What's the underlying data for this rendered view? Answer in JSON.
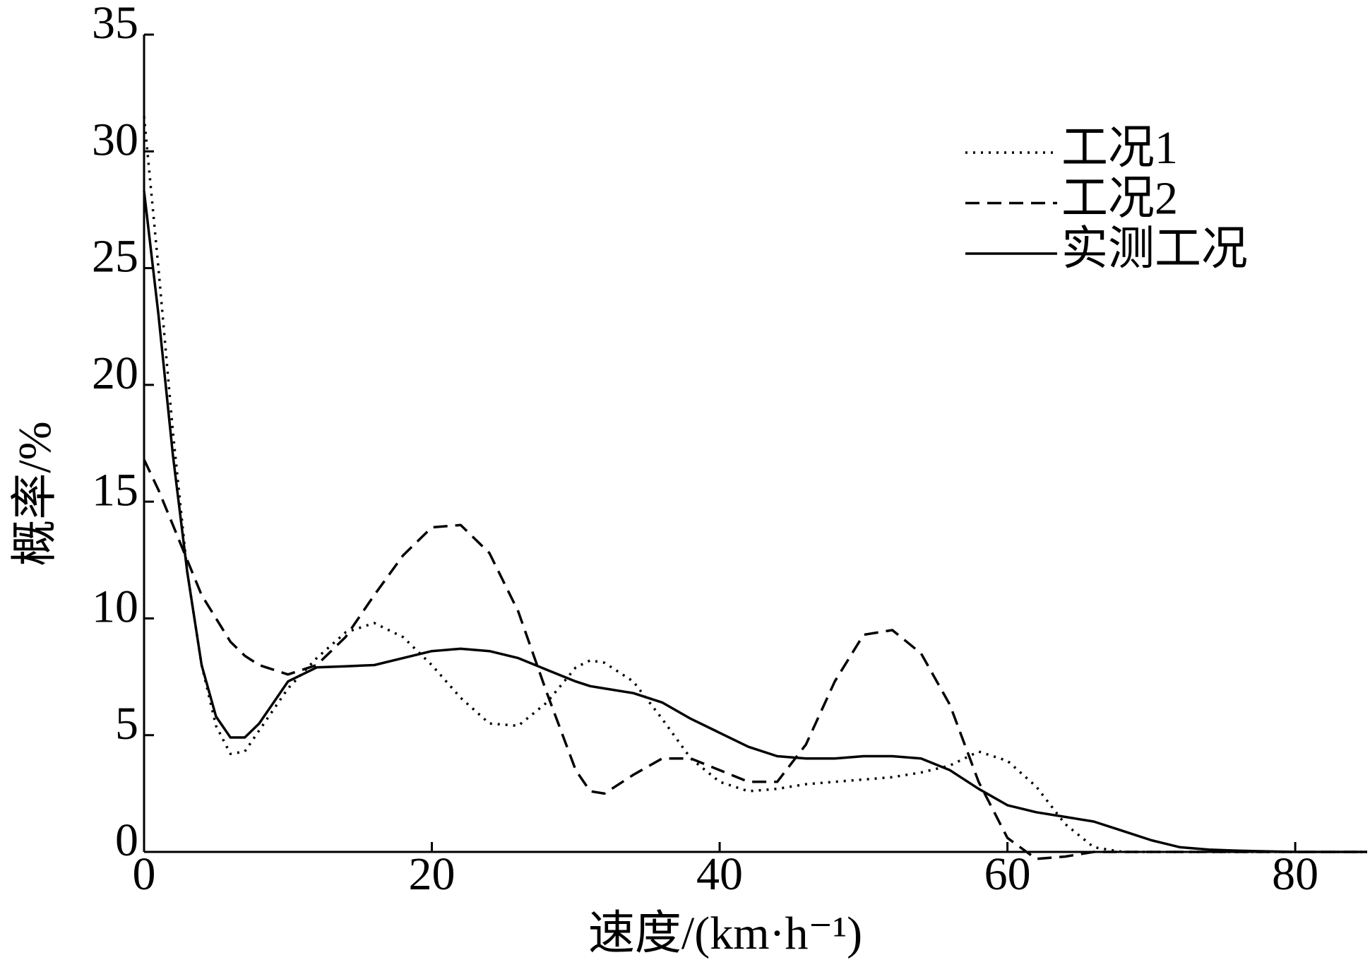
{
  "chart_data": {
    "type": "line",
    "xlabel": "速度/(km·h⁻¹)",
    "ylabel": "概率/%",
    "x": [
      0,
      1,
      2,
      3,
      4,
      5,
      6,
      7,
      8,
      10,
      12,
      14,
      16,
      18,
      20,
      22,
      24,
      26,
      28,
      30,
      31,
      32,
      34,
      36,
      38,
      40,
      42,
      44,
      46,
      48,
      50,
      52,
      54,
      56,
      58,
      60,
      62,
      64,
      66,
      68,
      70,
      72,
      74,
      76,
      80,
      85
    ],
    "series": [
      {
        "name": "工况1",
        "color": "#000000",
        "dash": "dotted",
        "values": [
          31.5,
          25,
          18,
          12,
          8,
          5.4,
          4.2,
          4.3,
          5.2,
          7.0,
          8.3,
          9.4,
          9.8,
          9.2,
          8.0,
          6.6,
          5.5,
          5.4,
          6.4,
          7.9,
          8.2,
          8.1,
          7.3,
          5.7,
          4.0,
          3.0,
          2.6,
          2.7,
          2.9,
          3.0,
          3.1,
          3.2,
          3.4,
          3.7,
          4.3,
          3.9,
          2.8,
          1.2,
          0.2,
          0,
          0,
          0,
          0,
          0,
          0,
          0
        ]
      },
      {
        "name": "工况2",
        "color": "#000000",
        "dash": "dashed",
        "values": [
          16.8,
          15.5,
          14,
          12.5,
          11,
          10,
          9.0,
          8.4,
          8.0,
          7.6,
          8.0,
          9.2,
          11,
          12.7,
          13.9,
          14.0,
          12.8,
          10.3,
          6.8,
          3.5,
          2.6,
          2.5,
          3.3,
          4.0,
          4.0,
          3.5,
          3.0,
          3.0,
          4.6,
          7.3,
          9.3,
          9.5,
          8.5,
          6.3,
          3.0,
          0.6,
          -0.3,
          -0.2,
          0,
          0,
          0,
          0,
          0,
          0,
          0,
          0
        ]
      },
      {
        "name": "实测工况",
        "color": "#000000",
        "dash": "solid",
        "values": [
          28.3,
          23,
          17,
          12,
          8,
          5.8,
          4.9,
          4.9,
          5.5,
          7.3,
          7.9,
          7.95,
          8.0,
          8.3,
          8.6,
          8.7,
          8.6,
          8.3,
          7.8,
          7.3,
          7.1,
          7.0,
          6.8,
          6.4,
          5.7,
          5.1,
          4.5,
          4.1,
          4.0,
          4.0,
          4.1,
          4.1,
          4.0,
          3.5,
          2.7,
          2.0,
          1.7,
          1.5,
          1.3,
          0.9,
          0.5,
          0.2,
          0.1,
          0.05,
          0,
          0
        ]
      }
    ],
    "xlim": [
      0,
      85
    ],
    "ylim": [
      0,
      35
    ],
    "xticks": [
      0,
      20,
      40,
      60,
      80
    ],
    "yticks": [
      0,
      5,
      10,
      15,
      20,
      25,
      30,
      35
    ],
    "grid": false,
    "legend": "upper right"
  }
}
